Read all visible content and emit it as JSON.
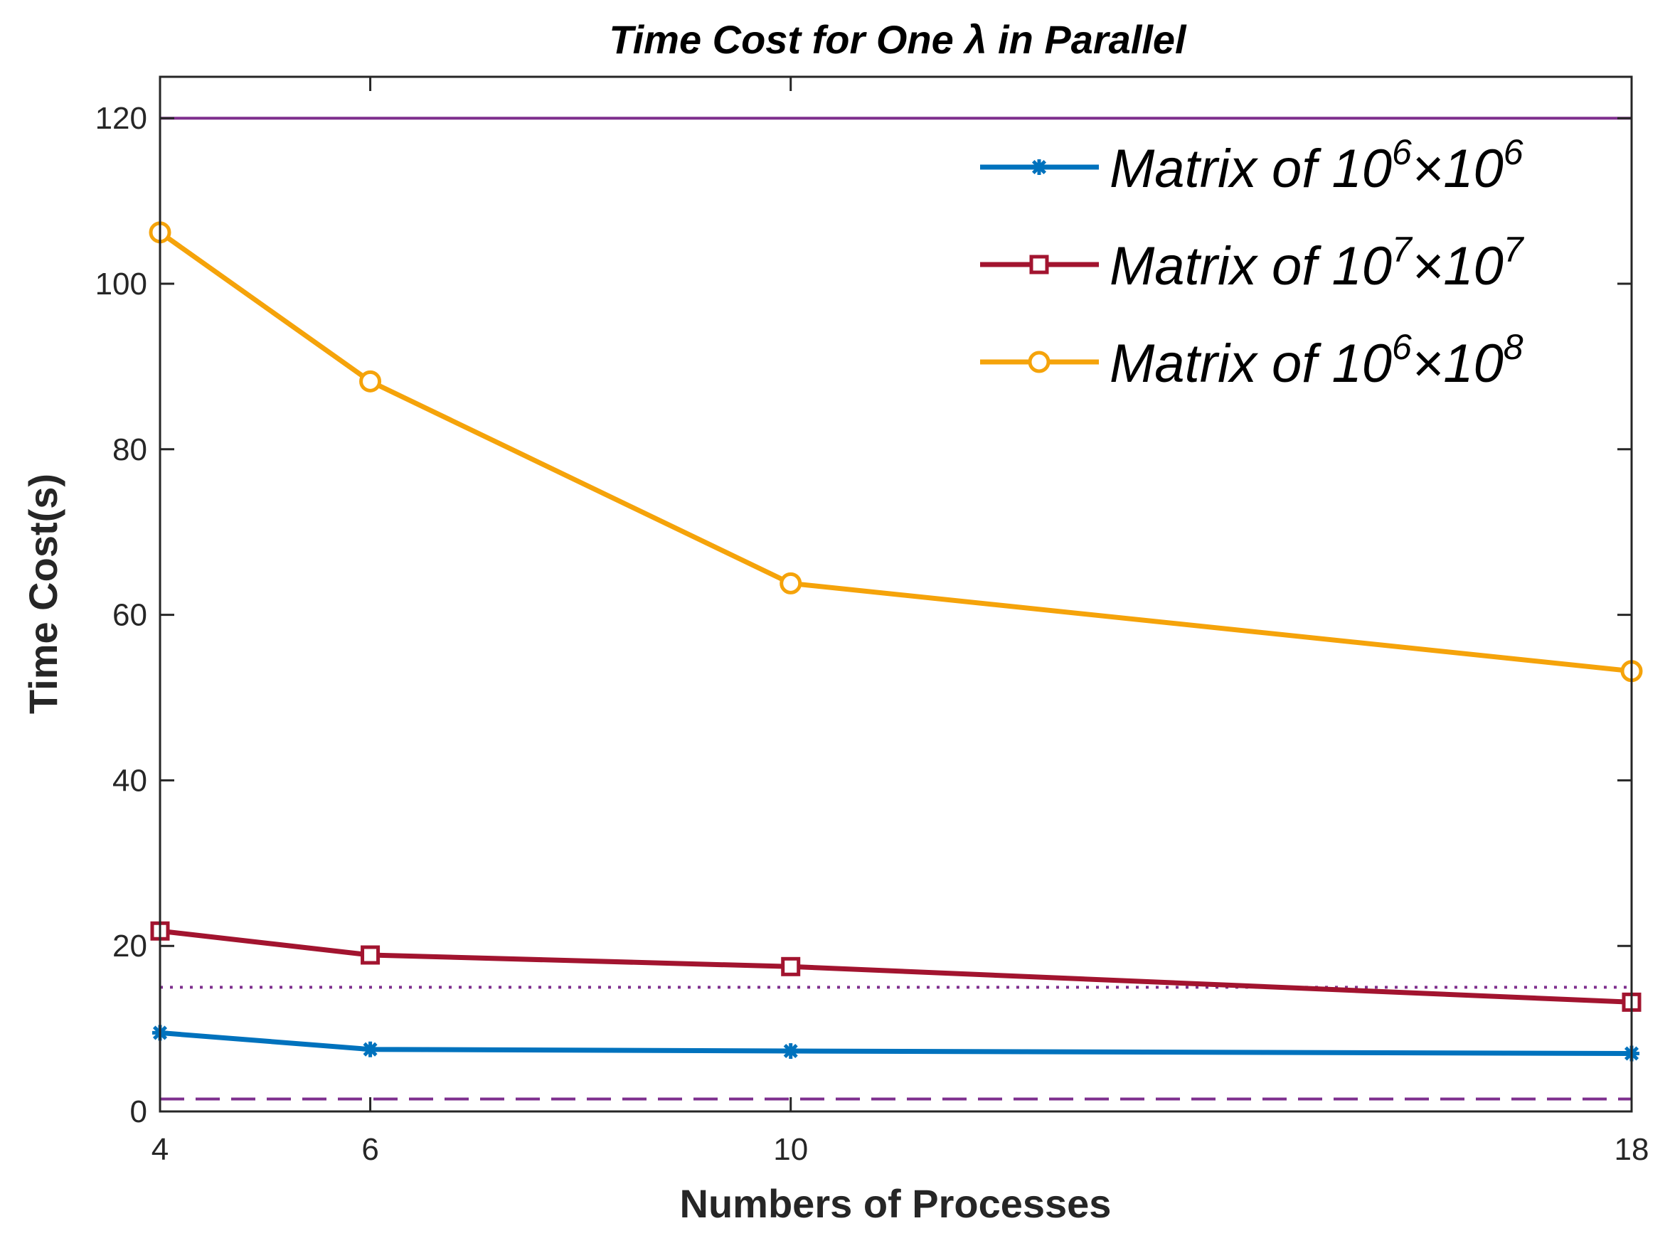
{
  "chart_data": {
    "type": "line",
    "title": "Time Cost for One λ in Parallel",
    "xlabel": "Numbers of Processes",
    "ylabel": "Time Cost(s)",
    "xlim": [
      4,
      18
    ],
    "ylim": [
      0,
      125
    ],
    "xticks": [
      4,
      6,
      10,
      18
    ],
    "yticks": [
      0,
      20,
      40,
      60,
      80,
      100,
      120
    ],
    "x": [
      4,
      6,
      10,
      18
    ],
    "series": [
      {
        "name": "Matrix of 10^6×10^6",
        "legend": {
          "prefix": "Matrix of 10",
          "exp1": "6",
          "mid": "×10",
          "exp2": "6"
        },
        "color": "#0072BD",
        "marker": "asterisk",
        "values": [
          9.5,
          7.5,
          7.3,
          7.0
        ]
      },
      {
        "name": "Matrix of 10^7×10^7",
        "legend": {
          "prefix": "Matrix of 10",
          "exp1": "7",
          "mid": "×10",
          "exp2": "7"
        },
        "color": "#A2142F",
        "marker": "square",
        "values": [
          21.8,
          18.9,
          17.5,
          13.2
        ]
      },
      {
        "name": "Matrix of 10^6×10^8",
        "legend": {
          "prefix": "Matrix of 10",
          "exp1": "6",
          "mid": "×10",
          "exp2": "8"
        },
        "color": "#F5A30A",
        "marker": "circle",
        "values": [
          106.2,
          88.2,
          63.8,
          53.2
        ]
      }
    ],
    "reference_lines": [
      {
        "style": "solid",
        "y": 120,
        "color": "#7E2F8E"
      },
      {
        "style": "dotted",
        "y": 15,
        "color": "#7E2F8E"
      },
      {
        "style": "dashed",
        "y": 1.5,
        "color": "#7E2F8E"
      }
    ],
    "legend_position": "top-right",
    "grid": false
  }
}
